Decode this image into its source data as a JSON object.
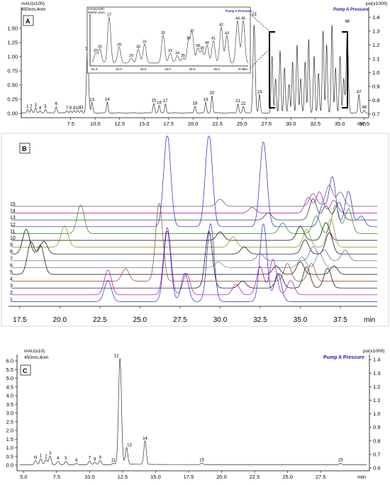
{
  "panels": {
    "A": {
      "letter": "A",
      "left_unit": "mAU(x100)",
      "detector": "450nm,4nm",
      "right_unit": "psi(x1000)",
      "pressure_label": "Pump A Pressure",
      "x_unit": "min",
      "inset": {
        "left_unit": "mAU(x100)",
        "detector": "450nm,4nm",
        "pressure_label": "Pump A Pressure",
        "x_unit": "min"
      }
    },
    "B": {
      "letter": "B",
      "x_unit": "min"
    },
    "C": {
      "letter": "C",
      "left_unit": "mAU(x10)",
      "detector": "450nm,4nm",
      "right_unit": "psi(x1000)",
      "pressure_label": "Pump A Pressure",
      "x_unit": "min"
    }
  },
  "chart_data": [
    {
      "panel": "A",
      "type": "line",
      "xlabel": "min",
      "ylabel": "mAU(x100)",
      "y2label": "psi(x1000)",
      "xlim": [
        5.0,
        40.5
      ],
      "x_ticks": [
        "7.5",
        "10.0",
        "12.5",
        "15.0",
        "17.5",
        "20.0",
        "22.5",
        "25.0",
        "27.5",
        "30.0",
        "32.5",
        "35.0",
        "37.5",
        "min"
      ],
      "ylim": [
        0.0,
        1.75
      ],
      "y_ticks": [
        "0.00",
        "0.25",
        "0.50",
        "0.75",
        "1.00",
        "1.25",
        "1.50"
      ],
      "y2_ticks": [
        "0.7",
        "0.8",
        "0.9",
        "1.0",
        "1.1",
        "1.2",
        "1.3",
        "1.4"
      ],
      "peaks": [
        {
          "label": "1",
          "x": 5.9,
          "y": 0.06
        },
        {
          "label": "2",
          "x": 6.3,
          "y": 0.07
        },
        {
          "label": "3",
          "x": 6.8,
          "y": 0.09
        },
        {
          "label": "4",
          "x": 7.3,
          "y": 0.04
        },
        {
          "label": "5",
          "x": 7.9,
          "y": 0.06
        },
        {
          "label": "6",
          "x": 9.1,
          "y": 0.11
        },
        {
          "label": "7",
          "x": 10.3,
          "y": 0.04
        },
        {
          "label": "8",
          "x": 10.7,
          "y": 0.04
        },
        {
          "label": "9",
          "x": 11.1,
          "y": 0.04
        },
        {
          "label": "10",
          "x": 11.5,
          "y": 0.04
        },
        {
          "label": "11",
          "x": 11.9,
          "y": 0.05
        },
        {
          "label": "12",
          "x": 12.6,
          "y": 1.08
        },
        {
          "label": "13",
          "x": 13.1,
          "y": 0.18
        },
        {
          "label": "14",
          "x": 14.8,
          "y": 0.19
        },
        {
          "label": "15",
          "x": 20.0,
          "y": 0.17
        },
        {
          "label": "16",
          "x": 20.6,
          "y": 0.13
        },
        {
          "label": "17",
          "x": 21.3,
          "y": 0.16
        },
        {
          "label": "18",
          "x": 24.6,
          "y": 0.12
        },
        {
          "label": "19",
          "x": 25.8,
          "y": 0.18
        },
        {
          "label": "20",
          "x": 26.5,
          "y": 0.3
        },
        {
          "label": "21",
          "x": 29.4,
          "y": 0.16
        },
        {
          "label": "22",
          "x": 30.0,
          "y": 0.11
        },
        {
          "label": "23",
          "x": 31.2,
          "y": 1.55
        },
        {
          "label": "24",
          "x": 31.8,
          "y": 0.32
        },
        {
          "label": "46",
          "x": 41.6,
          "y": 1.4
        },
        {
          "label": "47",
          "x": 42.9,
          "y": 0.32
        },
        {
          "label": "48",
          "x": 43.5,
          "y": 0.05
        }
      ],
      "inset": {
        "x_ticks": [
          "31.0",
          "32.0",
          "33.0",
          "34.0",
          "35.0",
          "36.0",
          "37.0",
          "min"
        ],
        "peaks": [
          "25",
          "26",
          "27",
          "28",
          "29",
          "30",
          "31",
          "32",
          "33",
          "34",
          "35",
          "36",
          "37",
          "38",
          "39",
          "40",
          "41",
          "42",
          "43",
          "44",
          "45"
        ]
      }
    },
    {
      "panel": "B",
      "type": "line",
      "xlabel": "min",
      "xlim": [
        16.8,
        39.8
      ],
      "x_ticks": [
        "17.5",
        "20.0",
        "22.5",
        "25.0",
        "27.5",
        "30.0",
        "32.5",
        "35.0",
        "37.5",
        "min"
      ],
      "series": [
        {
          "name": "15",
          "color": "#555555"
        },
        {
          "name": "14",
          "color": "#b000b0"
        },
        {
          "name": "13",
          "color": "#222222"
        },
        {
          "name": "12",
          "color": "#2222cc"
        },
        {
          "name": "11",
          "color": "#118811"
        },
        {
          "name": "10",
          "color": "#000000"
        },
        {
          "name": "9",
          "color": "#888800"
        },
        {
          "name": "8",
          "color": "#000000"
        },
        {
          "name": "7",
          "color": "#336699"
        },
        {
          "name": "6",
          "color": "#777777"
        },
        {
          "name": "5",
          "color": "#000000"
        },
        {
          "name": "4",
          "color": "#8b4513"
        },
        {
          "name": "3",
          "color": "#000000"
        },
        {
          "name": "2",
          "color": "#b000b0"
        },
        {
          "name": "1",
          "color": "#2222cc"
        }
      ]
    },
    {
      "panel": "C",
      "type": "line",
      "xlabel": "min",
      "ylabel": "mAU(x10)",
      "y2label": "psi(x1000)",
      "xlim": [
        4.5,
        31.2
      ],
      "x_ticks": [
        "5.0",
        "7.5",
        "10.0",
        "12.5",
        "15.0",
        "17.5",
        "20.0",
        "22.5",
        "25.0",
        "27.5",
        "min"
      ],
      "ylim": [
        -0.2,
        6.5
      ],
      "y_ticks": [
        "0.0",
        "0.5",
        "1.0",
        "1.5",
        "2.0",
        "2.5",
        "3.0",
        "3.5",
        "4.0",
        "4.5",
        "5.0",
        "5.5",
        "6.0"
      ],
      "y2_ticks": [
        "0.6",
        "0.7",
        "0.8",
        "0.9",
        "1.0",
        "1.1",
        "1.2",
        "1.3",
        "1.4"
      ],
      "peaks": [
        {
          "label": "N",
          "x": 5.9,
          "y": 0.25
        },
        {
          "label": "1",
          "x": 6.3,
          "y": 0.35
        },
        {
          "label": "2",
          "x": 6.7,
          "y": 0.3
        },
        {
          "label": "3",
          "x": 7.0,
          "y": 0.5
        },
        {
          "label": "4",
          "x": 7.6,
          "y": 0.2
        },
        {
          "label": "5",
          "x": 8.2,
          "y": 0.2
        },
        {
          "label": "6",
          "x": 9.0,
          "y": 0.08
        },
        {
          "label": "7",
          "x": 10.0,
          "y": 0.22
        },
        {
          "label": "8",
          "x": 10.4,
          "y": 0.15
        },
        {
          "label": "9",
          "x": 10.8,
          "y": 0.25
        },
        {
          "label": "11",
          "x": 11.8,
          "y": 0.1
        },
        {
          "label": "12",
          "x": 12.3,
          "y": 6.1
        },
        {
          "label": "13",
          "x": 12.8,
          "y": 0.95
        },
        {
          "label": "14",
          "x": 14.2,
          "y": 1.35
        },
        {
          "label": "15",
          "x": 18.5,
          "y": 0.1
        },
        {
          "label": "23",
          "x": 29.0,
          "y": 0.1
        }
      ]
    }
  ]
}
